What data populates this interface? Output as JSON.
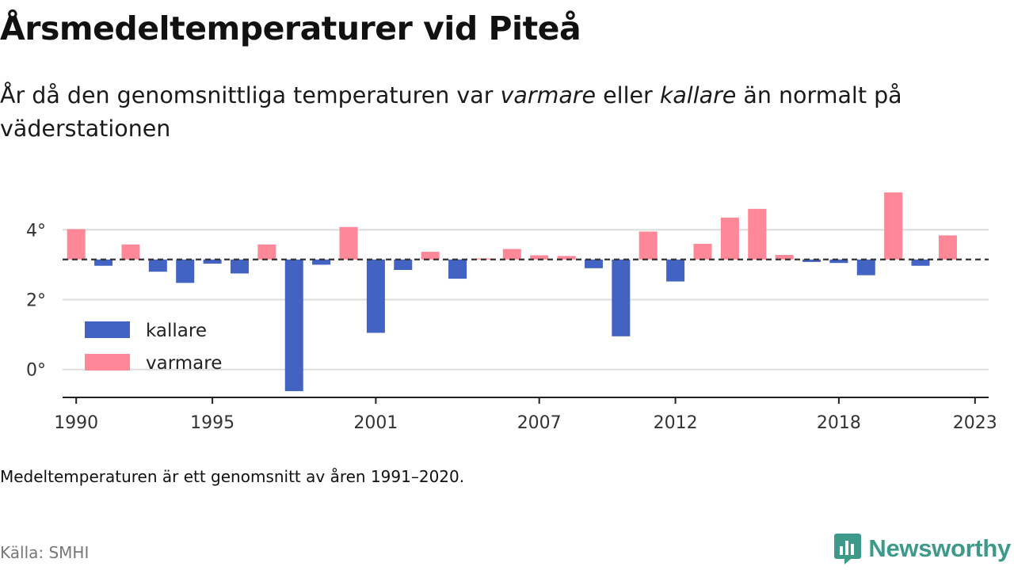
{
  "title": "Årsmedeltemperaturer vid Piteå",
  "subtitle": {
    "part1": "År då den genomsnittliga temperaturen var ",
    "warmer_word": "varmare",
    "part2": " eller ",
    "colder_word": "kallare",
    "part3": " än normalt på väderstationen"
  },
  "note": "Medeltemperaturen är ett genomsnitt av åren 1991–2020.",
  "source": "Källa: SMHI",
  "brand": {
    "name": "Newsworthy",
    "icon": "newsworthy-logo-icon",
    "color": "#3d9a8b"
  },
  "colors": {
    "colder": "#4263c1",
    "warmer": "#fe8798",
    "grid": "#dddddd",
    "baseline": "#333333",
    "axis": "#222222"
  },
  "chart_data": {
    "type": "bar",
    "baseline": 3.15,
    "xlim": [
      1989.5,
      2023.5
    ],
    "ylim": [
      -0.8,
      4.8
    ],
    "ytick_values": [
      0,
      2,
      4
    ],
    "ytick_labels": [
      "0°",
      "2°",
      "4°"
    ],
    "xtick_values": [
      1990,
      1995,
      2001,
      2007,
      2012,
      2018,
      2023
    ],
    "xtick_labels": [
      "1990",
      "1995",
      "2001",
      "2007",
      "2012",
      "2018",
      "2023"
    ],
    "grid": true,
    "legend": {
      "placement": "middle-left",
      "entries": [
        {
          "label": "kallare",
          "color": "#4263c1"
        },
        {
          "label": "varmare",
          "color": "#fe8798"
        }
      ]
    },
    "years": [
      1990,
      1991,
      1992,
      1993,
      1994,
      1995,
      1996,
      1997,
      1998,
      1999,
      2000,
      2001,
      2002,
      2003,
      2004,
      2005,
      2006,
      2007,
      2008,
      2009,
      2010,
      2011,
      2012,
      2013,
      2014,
      2015,
      2016,
      2017,
      2018,
      2019,
      2020,
      2021,
      2022
    ],
    "values": [
      4.02,
      2.97,
      3.58,
      2.8,
      2.48,
      3.03,
      2.75,
      3.58,
      -0.62,
      3.0,
      4.08,
      1.05,
      2.85,
      3.37,
      2.6,
      3.18,
      3.45,
      3.27,
      3.25,
      2.9,
      0.95,
      3.95,
      2.52,
      3.6,
      4.35,
      4.6,
      3.28,
      3.08,
      3.05,
      2.7,
      5.07,
      2.97,
      3.84
    ]
  }
}
